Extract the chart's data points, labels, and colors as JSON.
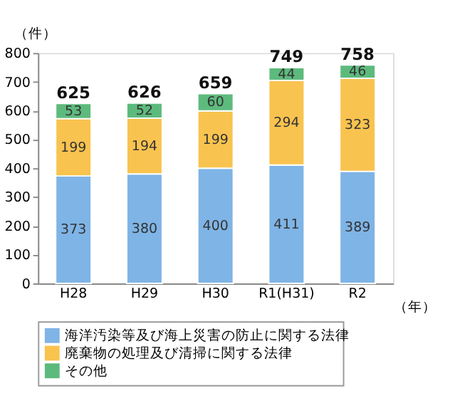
{
  "chart_data": {
    "type": "bar",
    "stacked": true,
    "ylabel": "（件）",
    "xlabel": "（年）",
    "categories": [
      "H28",
      "H29",
      "H30",
      "R1(H31)",
      "R2"
    ],
    "series": [
      {
        "name": "海洋汚染等及び海上災害の防止に関する法律",
        "color": "#7fb4e6",
        "values": [
          373,
          380,
          400,
          411,
          389
        ]
      },
      {
        "name": "廃棄物の処理及び清掃に関する法律",
        "color": "#f9c34f",
        "values": [
          199,
          194,
          199,
          294,
          323
        ]
      },
      {
        "name": "その他",
        "color": "#5dba7d",
        "values": [
          53,
          52,
          60,
          44,
          46
        ]
      }
    ],
    "totals": [
      "625",
      "626",
      "659",
      "749",
      "758"
    ],
    "ylim": [
      0,
      800
    ],
    "yticks": [
      0,
      100,
      200,
      300,
      400,
      500,
      600,
      700,
      800
    ],
    "data_labels": true,
    "grid": false,
    "legend": "bottom"
  }
}
